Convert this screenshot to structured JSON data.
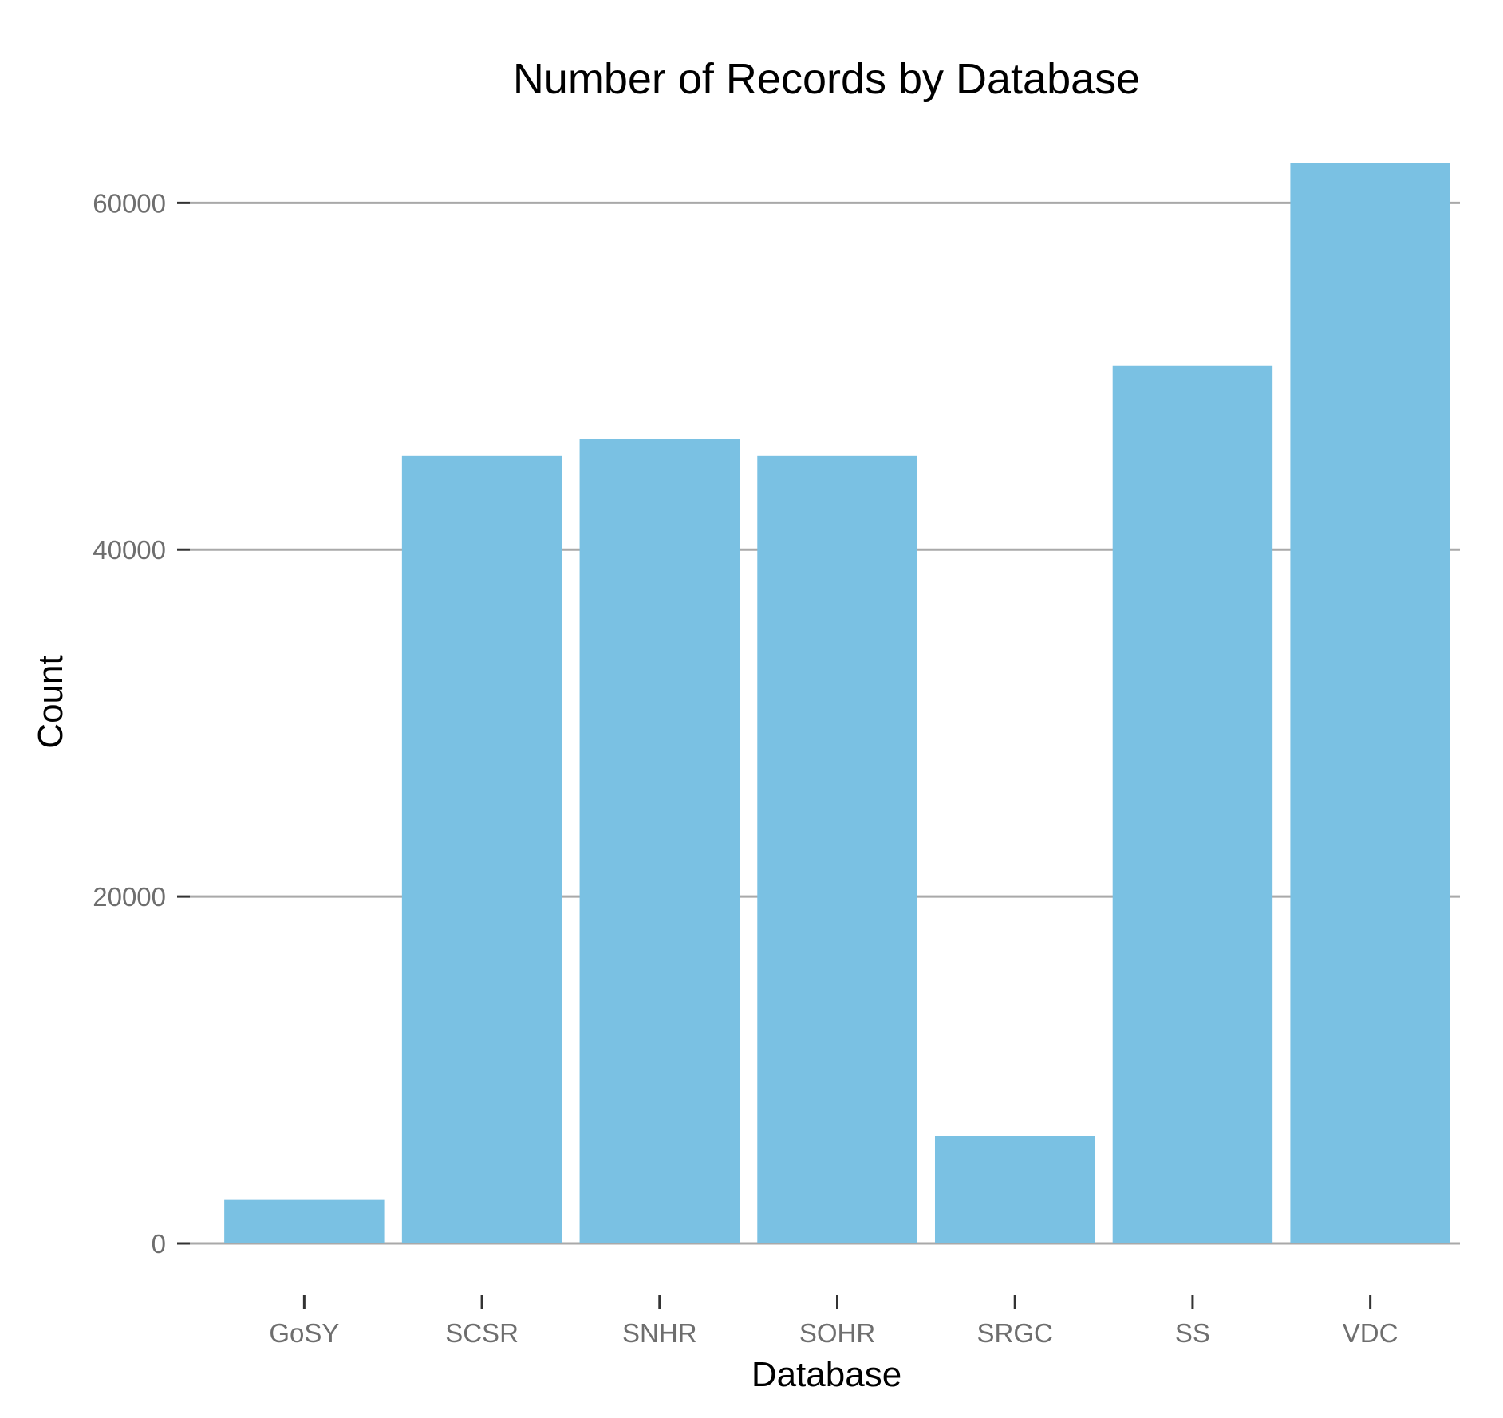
{
  "chart_data": {
    "type": "bar",
    "title": "Number of Records by Database",
    "xlabel": "Database",
    "ylabel": "Count",
    "categories": [
      "GoSY",
      "SCSR",
      "SNHR",
      "SOHR",
      "SRGC",
      "SS",
      "VDC"
    ],
    "values": [
      2500,
      45400,
      46400,
      45400,
      6200,
      50600,
      62300
    ],
    "ylim": [
      0,
      62500
    ],
    "yticks": [
      0,
      20000,
      40000,
      60000
    ],
    "ytick_labels": [
      "0",
      "20000",
      "40000",
      "60000"
    ],
    "grid": "horizontal",
    "legend": "none",
    "colors": {
      "bar": "#7ac1e3",
      "gridline": "#a9a9a9",
      "tick_label": "#6e6e6e",
      "text": "#000000"
    }
  }
}
